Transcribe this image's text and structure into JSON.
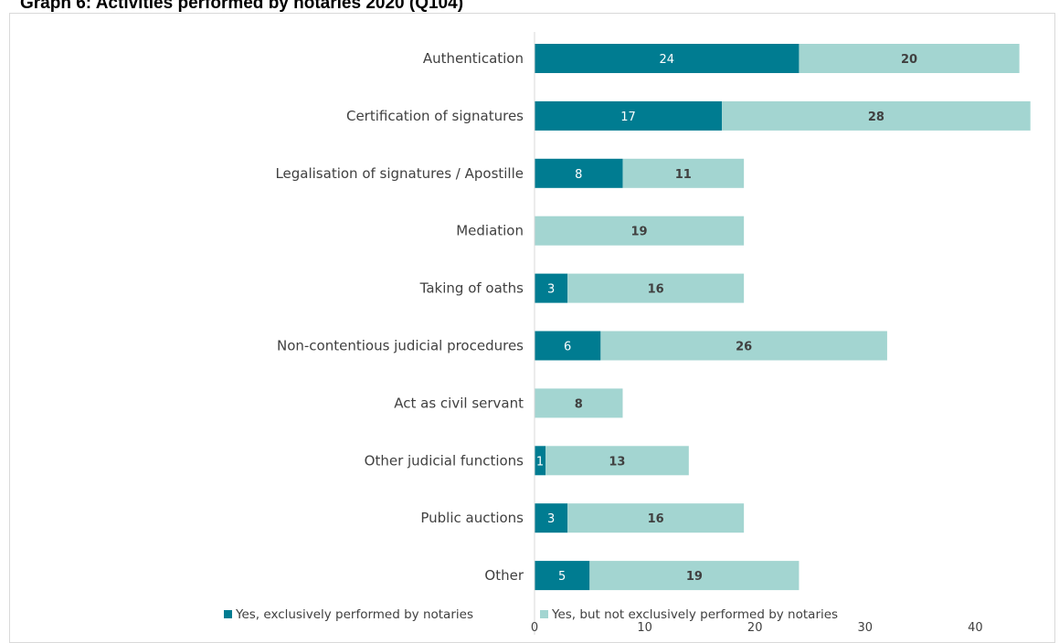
{
  "page": {
    "title": "Graph 6: Activities performed by notaries 2020 (Q104)"
  },
  "chart_data": {
    "type": "bar",
    "orientation": "horizontal",
    "stacked": true,
    "categories": [
      "Authentication",
      "Certification of signatures",
      "Legalisation of signatures / Apostille",
      "Mediation",
      "Taking of oaths",
      "Non-contentious judicial procedures",
      "Act as civil servant",
      "Other judicial functions",
      "Public auctions",
      "Other"
    ],
    "series": [
      {
        "name": "Yes, exclusively performed by notaries",
        "color": "#007c91",
        "values": [
          24,
          17,
          8,
          0,
          3,
          6,
          0,
          1,
          3,
          5
        ]
      },
      {
        "name": "Yes, but not exclusively performed by notaries",
        "color": "#a3d5d1",
        "values": [
          20,
          28,
          11,
          19,
          16,
          26,
          8,
          13,
          16,
          19
        ]
      }
    ],
    "x_ticks": [
      "0",
      "10",
      "20",
      "30",
      "40"
    ],
    "xlim": [
      0,
      45
    ],
    "grid": false,
    "legend": "bottom"
  }
}
